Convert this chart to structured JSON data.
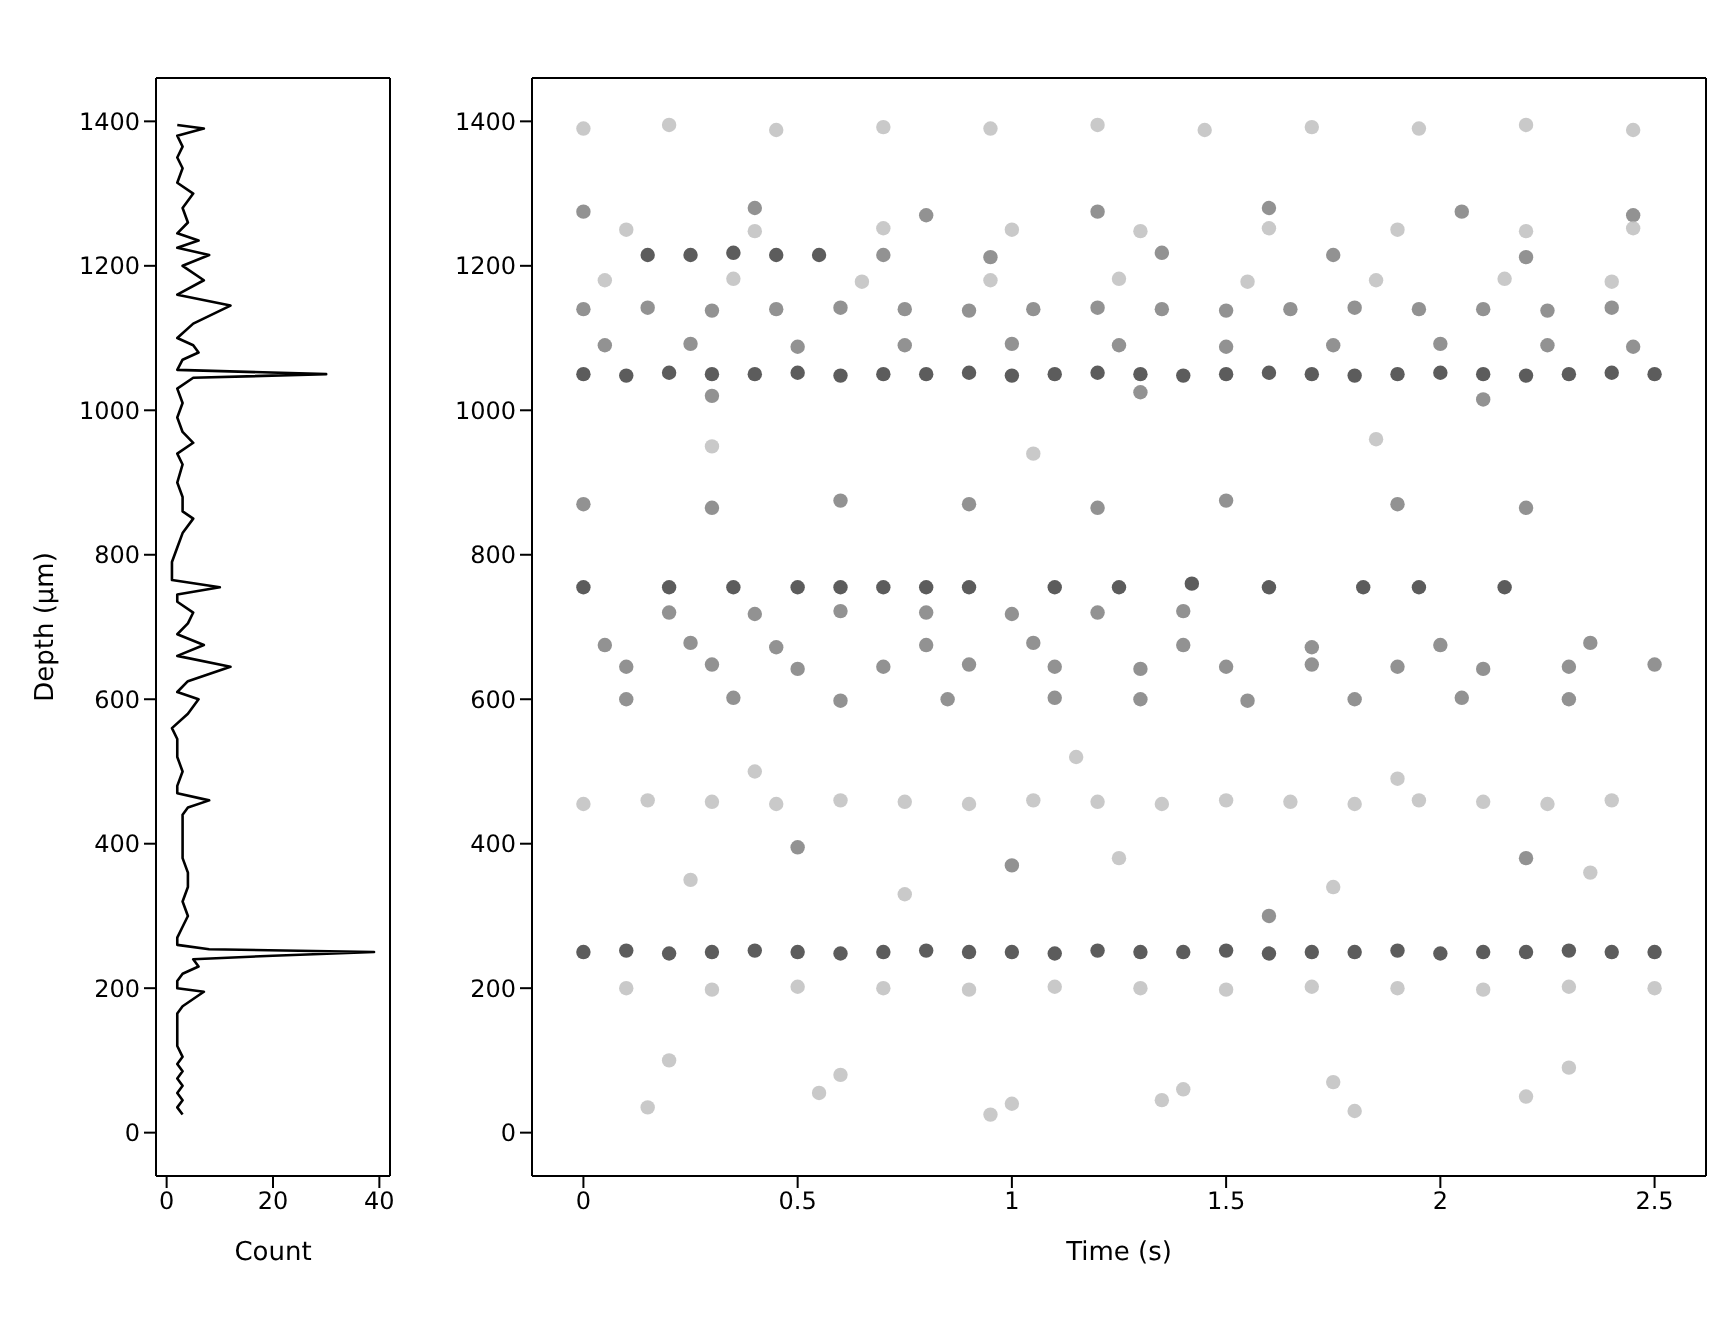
{
  "chart_data": [
    {
      "type": "line",
      "xlabel": "Count",
      "ylabel": "Depth (μm)",
      "xlim": [
        -2,
        42
      ],
      "xticks": [
        0,
        20,
        40
      ],
      "ylim": [
        -60,
        1460
      ],
      "yticks": [
        0,
        200,
        400,
        600,
        800,
        1000,
        1200,
        1400
      ],
      "series": [
        {
          "color": "#000000",
          "x": [
            3,
            2,
            3,
            2,
            3,
            2,
            3,
            2,
            3,
            2,
            2,
            2,
            2,
            3,
            5,
            7,
            2,
            2,
            3,
            6,
            5,
            20,
            39,
            8,
            2,
            2,
            3,
            4,
            3,
            4,
            4,
            3,
            3,
            3,
            3,
            4,
            8,
            2,
            2,
            3,
            2,
            2,
            1,
            4,
            6,
            2,
            4,
            12,
            2,
            7,
            2,
            4,
            5,
            2,
            2,
            10,
            1,
            1,
            2,
            3,
            5,
            3,
            3,
            2,
            3,
            2,
            5,
            3,
            2,
            3,
            2,
            5,
            30,
            2,
            3,
            6,
            5,
            2,
            5,
            12,
            2,
            7,
            3,
            8,
            2,
            6,
            2,
            4,
            3,
            5,
            2,
            3,
            2,
            3,
            2,
            7,
            2
          ],
          "values": [
            25,
            35,
            45,
            55,
            65,
            75,
            85,
            95,
            105,
            120,
            135,
            150,
            165,
            175,
            185,
            195,
            200,
            210,
            220,
            230,
            240,
            245,
            250,
            254,
            260,
            270,
            285,
            300,
            320,
            340,
            360,
            380,
            400,
            420,
            440,
            450,
            460,
            470,
            480,
            500,
            520,
            545,
            560,
            580,
            600,
            610,
            625,
            645,
            660,
            675,
            690,
            705,
            720,
            735,
            745,
            755,
            765,
            790,
            810,
            830,
            850,
            860,
            880,
            900,
            925,
            940,
            955,
            970,
            990,
            1010,
            1030,
            1045,
            1050,
            1056,
            1070,
            1080,
            1090,
            1100,
            1120,
            1145,
            1160,
            1180,
            1200,
            1215,
            1225,
            1235,
            1245,
            1260,
            1280,
            1300,
            1315,
            1335,
            1350,
            1365,
            1380,
            1390,
            1395
          ]
        }
      ]
    },
    {
      "type": "scatter",
      "xlabel": "Time (s)",
      "xlim": [
        -0.12,
        2.62
      ],
      "xticks": [
        0,
        0.5,
        1,
        1.5,
        2,
        2.5
      ],
      "ylim": [
        -60,
        1460
      ],
      "yticks": [
        0,
        200,
        400,
        600,
        800,
        1000,
        1200,
        1400
      ],
      "marker": "circle",
      "series": [
        {
          "color": "#333333",
          "x": [
            0,
            0.1,
            0.2,
            0.3,
            0.4,
            0.5,
            0.6,
            0.7,
            0.8,
            0.9,
            1,
            1.1,
            1.2,
            1.3,
            1.4,
            1.5,
            1.6,
            1.7,
            1.8,
            1.9,
            2,
            2.1,
            2.2,
            2.3,
            2.4,
            2.5,
            0,
            0.1,
            0.2,
            0.3,
            0.4,
            0.5,
            0.6,
            0.7,
            0.8,
            0.9,
            1,
            1.1,
            1.2,
            1.3,
            1.4,
            1.5,
            1.6,
            1.7,
            1.8,
            1.9,
            2,
            2.1,
            2.2,
            2.3,
            2.4,
            2.5,
            0,
            0.2,
            0.35,
            0.5,
            0.6,
            0.7,
            0.8,
            0.9,
            1.1,
            1.25,
            1.42,
            1.6,
            1.82,
            1.95,
            2.15,
            0.15,
            0.25,
            0.35,
            0.45,
            0.55
          ],
          "values": [
            250,
            252,
            248,
            250,
            252,
            250,
            248,
            250,
            252,
            250,
            250,
            248,
            252,
            250,
            250,
            252,
            248,
            250,
            250,
            252,
            248,
            250,
            250,
            252,
            250,
            250,
            1050,
            1048,
            1052,
            1050,
            1050,
            1052,
            1048,
            1050,
            1050,
            1052,
            1048,
            1050,
            1052,
            1050,
            1048,
            1050,
            1052,
            1050,
            1048,
            1050,
            1052,
            1050,
            1048,
            1050,
            1052,
            1050,
            755,
            755,
            755,
            755,
            755,
            755,
            755,
            755,
            755,
            755,
            760,
            755,
            755,
            755,
            755,
            1215,
            1215,
            1218,
            1215,
            1215
          ]
        },
        {
          "color": "#777777",
          "x": [
            0,
            0.15,
            0.3,
            0.45,
            0.6,
            0.75,
            0.9,
            1.05,
            1.2,
            1.35,
            1.5,
            1.65,
            1.8,
            1.95,
            2.1,
            2.25,
            2.4,
            0.05,
            0.25,
            0.5,
            0.75,
            1,
            1.25,
            1.5,
            1.75,
            2,
            2.25,
            2.45,
            0.1,
            0.3,
            0.5,
            0.7,
            0.9,
            1.1,
            1.3,
            1.5,
            1.7,
            1.9,
            2.1,
            2.3,
            2.5,
            0.05,
            0.25,
            0.45,
            0.8,
            1.05,
            1.4,
            1.7,
            2,
            2.35,
            0.2,
            0.4,
            0.6,
            0.8,
            1,
            1.2,
            1.4,
            0.1,
            0.35,
            0.6,
            0.85,
            1.1,
            1.3,
            1.55,
            1.8,
            2.05,
            2.3,
            0,
            0.3,
            0.6,
            0.9,
            1.2,
            1.5,
            1.9,
            2.2,
            0.7,
            0.95,
            1.35,
            1.75,
            2.2,
            0,
            0.4,
            0.8,
            1.2,
            1.6,
            2.05,
            2.45,
            0.5,
            1,
            1.6,
            2.2,
            0.3,
            1.3,
            2.1
          ],
          "values": [
            1140,
            1142,
            1138,
            1140,
            1142,
            1140,
            1138,
            1140,
            1142,
            1140,
            1138,
            1140,
            1142,
            1140,
            1140,
            1138,
            1142,
            1090,
            1092,
            1088,
            1090,
            1092,
            1090,
            1088,
            1090,
            1092,
            1090,
            1088,
            645,
            648,
            642,
            645,
            648,
            645,
            642,
            645,
            648,
            645,
            642,
            645,
            648,
            675,
            678,
            672,
            675,
            678,
            675,
            672,
            675,
            678,
            720,
            718,
            722,
            720,
            718,
            720,
            722,
            600,
            602,
            598,
            600,
            602,
            600,
            598,
            600,
            602,
            600,
            870,
            865,
            875,
            870,
            865,
            875,
            870,
            865,
            1215,
            1212,
            1218,
            1215,
            1212,
            1275,
            1280,
            1270,
            1275,
            1280,
            1275,
            1270,
            395,
            370,
            300,
            380,
            1020,
            1025,
            1015
          ]
        },
        {
          "color": "#bbbbbb",
          "x": [
            0,
            0.15,
            0.3,
            0.45,
            0.6,
            0.75,
            0.9,
            1.05,
            1.2,
            1.35,
            1.5,
            1.65,
            1.8,
            1.95,
            2.1,
            2.25,
            2.4,
            0.1,
            0.3,
            0.5,
            0.7,
            0.9,
            1.1,
            1.3,
            1.5,
            1.7,
            1.9,
            2.1,
            2.3,
            2.5,
            0,
            0.2,
            0.45,
            0.7,
            0.95,
            1.2,
            1.45,
            1.7,
            1.95,
            2.2,
            2.45,
            0.1,
            0.4,
            0.7,
            1,
            1.3,
            1.6,
            1.9,
            2.2,
            2.45,
            0.05,
            0.35,
            0.65,
            0.95,
            1.25,
            1.55,
            1.85,
            2.15,
            2.4,
            0.2,
            0.6,
            1,
            1.4,
            1.8,
            2.3,
            0.15,
            0.55,
            0.95,
            1.35,
            1.75,
            2.2,
            0.25,
            0.75,
            1.25,
            1.75,
            2.35,
            0.4,
            1.15,
            1.9,
            0.3,
            1.05,
            1.85
          ],
          "values": [
            455,
            460,
            458,
            455,
            460,
            458,
            455,
            460,
            458,
            455,
            460,
            458,
            455,
            460,
            458,
            455,
            460,
            200,
            198,
            202,
            200,
            198,
            202,
            200,
            198,
            202,
            200,
            198,
            202,
            200,
            1390,
            1395,
            1388,
            1392,
            1390,
            1395,
            1388,
            1392,
            1390,
            1395,
            1388,
            1250,
            1248,
            1252,
            1250,
            1248,
            1252,
            1250,
            1248,
            1252,
            1180,
            1182,
            1178,
            1180,
            1182,
            1178,
            1180,
            1182,
            1178,
            100,
            80,
            40,
            60,
            30,
            90,
            35,
            55,
            25,
            45,
            70,
            50,
            350,
            330,
            380,
            340,
            360,
            500,
            520,
            490,
            950,
            940,
            960
          ]
        }
      ]
    }
  ]
}
